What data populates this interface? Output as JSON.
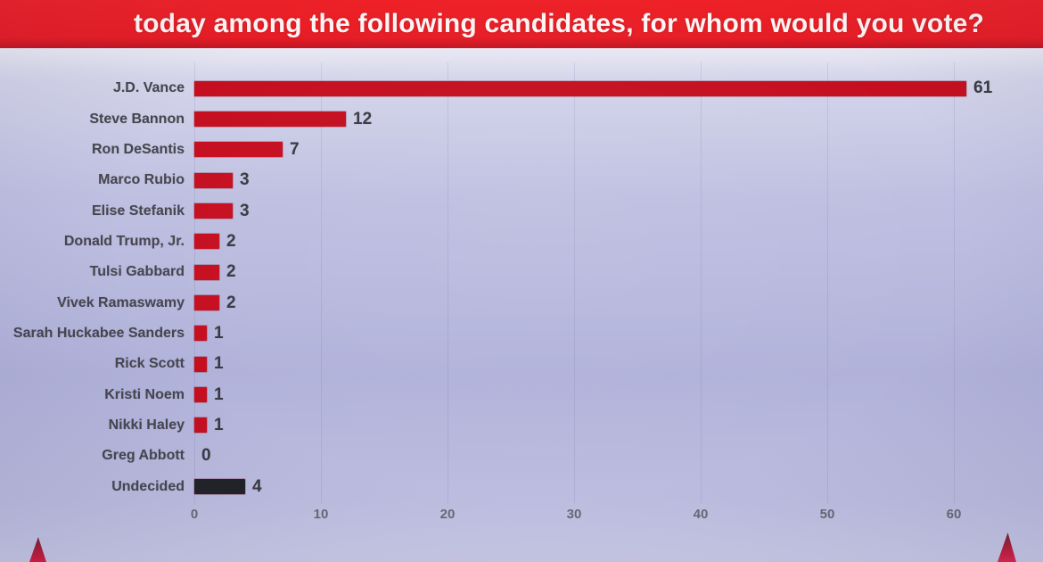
{
  "header": {
    "title": "today among the following candidates, for whom would you vote?",
    "background_color": "#e71d25",
    "text_color": "#fef4f4"
  },
  "chart_data": {
    "type": "bar",
    "orientation": "horizontal",
    "title": "",
    "categories": [
      "J.D. Vance",
      "Steve Bannon",
      "Ron DeSantis",
      "Marco Rubio",
      "Elise Stefanik",
      "Donald Trump, Jr.",
      "Tulsi Gabbard",
      "Vivek Ramaswamy",
      "Sarah Huckabee Sanders",
      "Rick Scott",
      "Kristi Noem",
      "Nikki Haley",
      "Greg Abbott",
      "Undecided"
    ],
    "values": [
      61,
      12,
      7,
      3,
      3,
      2,
      2,
      2,
      1,
      1,
      1,
      1,
      0,
      4
    ],
    "colors": [
      "#c50f20",
      "#c50f20",
      "#c50f20",
      "#c50f20",
      "#c50f20",
      "#c50f20",
      "#c50f20",
      "#c50f20",
      "#c50f20",
      "#c50f20",
      "#c50f20",
      "#c50f20",
      "#c50f20",
      "#222227"
    ],
    "x_ticks": [
      0,
      10,
      20,
      30,
      40,
      50,
      60
    ],
    "xlim": [
      0,
      65
    ],
    "value_labels_shown": true,
    "grid": "faint vertical gridlines at ticks",
    "legend_position": "none",
    "plot_background_color": "#b5b6db",
    "bar_color": "#c50f20",
    "undecided_bar_color": "#222227",
    "category_label_color": "#46464e",
    "value_label_color": "#3a3a42",
    "axis_label_color": "#686874"
  },
  "decorations": {
    "bottom_spike_color": "#d81b40"
  }
}
